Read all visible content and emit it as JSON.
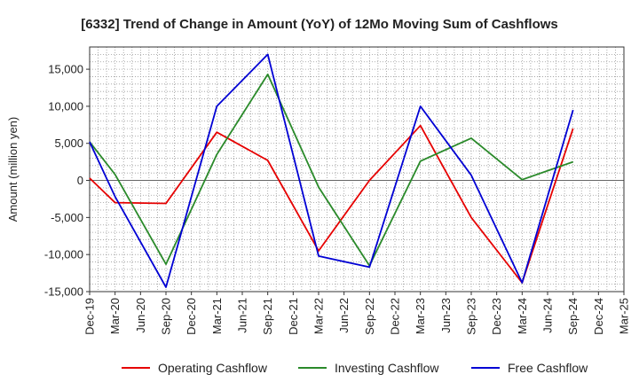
{
  "chart_data": {
    "type": "line",
    "title": "[6332]  Trend of Change in Amount (YoY) of 12Mo Moving Sum of Cashflows",
    "ylabel": "Amount (million yen)",
    "xlabel": "",
    "ylim": [
      -15000,
      18000
    ],
    "yticks": [
      -15000,
      -10000,
      -5000,
      0,
      5000,
      10000,
      15000
    ],
    "ytick_labels": [
      "-15,000",
      "-10,000",
      "-5,000",
      "0",
      "5,000",
      "10,000",
      "15,000"
    ],
    "categories": [
      "Dec-19",
      "Mar-20",
      "Jun-20",
      "Sep-20",
      "Dec-20",
      "Mar-21",
      "Jun-21",
      "Sep-21",
      "Dec-21",
      "Mar-22",
      "Jun-22",
      "Sep-22",
      "Dec-22",
      "Mar-23",
      "Jun-23",
      "Sep-23",
      "Dec-23",
      "Mar-24",
      "Jun-24",
      "Sep-24",
      "Dec-24",
      "Mar-25"
    ],
    "grid": true,
    "legend_position": "bottom",
    "series": [
      {
        "name": "Operating Cashflow",
        "color": "#e60000",
        "values": [
          300,
          -3000,
          null,
          -3100,
          null,
          6500,
          null,
          2700,
          null,
          -9500,
          null,
          0,
          null,
          7400,
          null,
          -5000,
          null,
          -13800,
          null,
          7000,
          null,
          null
        ]
      },
      {
        "name": "Investing Cashflow",
        "color": "#2a8a2a",
        "values": [
          5200,
          800,
          null,
          -11300,
          null,
          3500,
          null,
          14300,
          null,
          -900,
          null,
          -11500,
          null,
          2600,
          null,
          5700,
          null,
          100,
          null,
          2500,
          null,
          null
        ]
      },
      {
        "name": "Free Cashflow",
        "color": "#0000d4",
        "values": [
          5200,
          -2200,
          null,
          -14400,
          null,
          10000,
          null,
          17000,
          null,
          -10200,
          null,
          -11700,
          null,
          10000,
          null,
          700,
          null,
          -13800,
          null,
          9500,
          null,
          null
        ]
      }
    ]
  }
}
